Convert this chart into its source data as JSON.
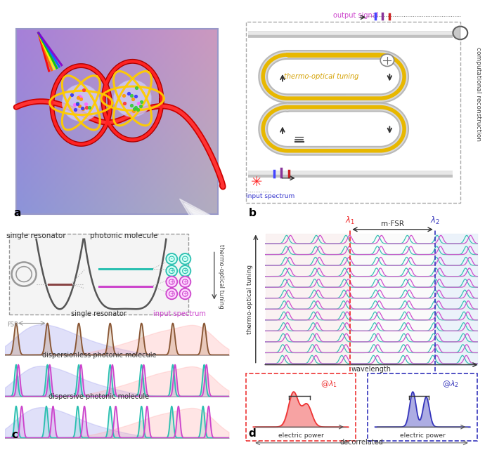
{
  "panel_labels": [
    "a",
    "b",
    "c",
    "d"
  ],
  "colors": {
    "teal": "#2abfb0",
    "magenta": "#cc44cc",
    "gold": "#e8b800",
    "gray_outer": "#bbbbbb",
    "gray_inner": "#e0e0e0",
    "red": "#ee2222",
    "blue": "#3333cc",
    "pink_bg": "#ffdddd",
    "blue_bg": "#ddeeff",
    "brown": "#996633",
    "dark": "#333333"
  }
}
